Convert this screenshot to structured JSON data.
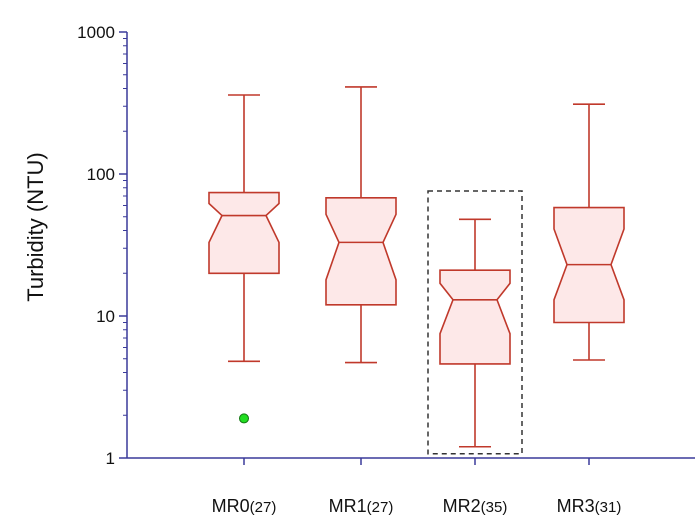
{
  "chart_data": {
    "type": "box",
    "ylabel": "Turbidity (NTU)",
    "yscale": "log",
    "ylim": [
      1,
      1000
    ],
    "yticks": [
      {
        "value": 1,
        "label": "1"
      },
      {
        "value": 10,
        "label": "10"
      },
      {
        "value": 100,
        "label": "100"
      },
      {
        "value": 1000,
        "label": "1000"
      }
    ],
    "notched": true,
    "colors": {
      "box_stroke": "#c0392b",
      "box_fill": "#fde8e8",
      "axis": "#3a3a9a",
      "outlier": "#22dd22",
      "highlight": "#333333"
    },
    "highlight_category": "MR2",
    "categories": [
      {
        "name": "MR0",
        "n_label": "(27)",
        "whisker_low": 4.8,
        "q1": 20,
        "notch_low": 33,
        "median": 51,
        "notch_high": 62,
        "q3": 74,
        "whisker_high": 360,
        "outliers": [
          1.9
        ]
      },
      {
        "name": "MR1",
        "n_label": "(27)",
        "whisker_low": 4.7,
        "q1": 12,
        "notch_low": 18,
        "median": 33,
        "notch_high": 52,
        "q3": 68,
        "whisker_high": 410,
        "outliers": []
      },
      {
        "name": "MR2",
        "n_label": "(35)",
        "whisker_low": 1.2,
        "q1": 4.6,
        "notch_low": 7.5,
        "median": 13,
        "notch_high": 17,
        "q3": 21,
        "whisker_high": 48,
        "outliers": []
      },
      {
        "name": "MR3",
        "n_label": "(31)",
        "whisker_low": 4.9,
        "q1": 9,
        "notch_low": 13,
        "median": 23,
        "notch_high": 41,
        "q3": 58,
        "whisker_high": 310,
        "outliers": []
      }
    ]
  }
}
